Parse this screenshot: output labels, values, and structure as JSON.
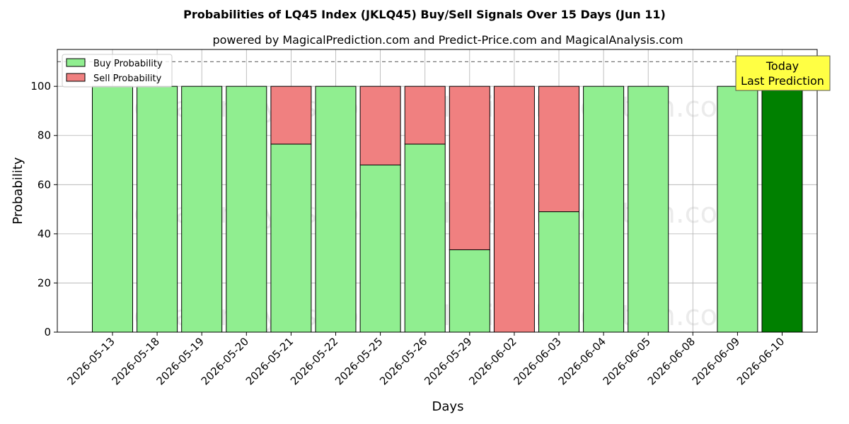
{
  "chart_data": {
    "type": "bar",
    "stacked": true,
    "title": "Probabilities of LQ45 Index (JKLQ45) Buy/Sell Signals Over 15 Days (Jun 11)",
    "subtitle": "powered by MagicalPrediction.com and Predict-Price.com and MagicalAnalysis.com",
    "xlabel": "Days",
    "ylabel": "Probability",
    "ylim": [
      0,
      115
    ],
    "yticks": [
      0,
      20,
      40,
      60,
      80,
      100
    ],
    "reference_line": 110,
    "grid": true,
    "legend_position": "top-left",
    "categories": [
      "2026-05-13",
      "2026-05-18",
      "2026-05-19",
      "2026-05-20",
      "2026-05-21",
      "2026-05-22",
      "2026-05-25",
      "2026-05-26",
      "2026-05-29",
      "2026-06-02",
      "2026-06-03",
      "2026-06-04",
      "2026-06-05",
      "2026-06-08",
      "2026-06-09",
      "2026-06-10"
    ],
    "series": [
      {
        "name": "Buy Probability",
        "color": "#90ee90",
        "values": [
          100,
          100,
          100,
          100,
          76.5,
          100,
          68,
          76.5,
          33.5,
          0,
          49,
          100,
          100,
          null,
          100,
          100
        ]
      },
      {
        "name": "Sell Probability",
        "color": "#f08080",
        "values": [
          0,
          0,
          0,
          0,
          23.5,
          0,
          32,
          23.5,
          66.5,
          100,
          51,
          0,
          0,
          null,
          0,
          0
        ]
      }
    ],
    "highlight": {
      "category": "2026-06-10",
      "color": "#008000"
    },
    "annotation": {
      "line1": "Today",
      "line2": "Last Prediction",
      "background": "#ffff44"
    },
    "watermarks": [
      "MagicalAnalysis.com",
      "MagicalPrediction.com"
    ]
  }
}
